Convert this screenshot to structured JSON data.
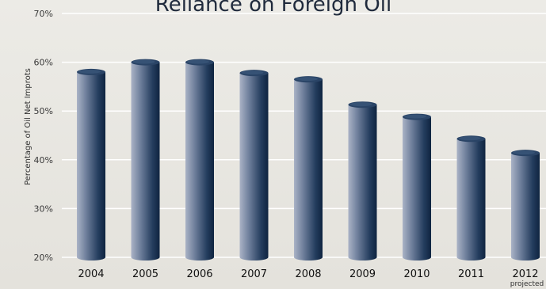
{
  "chart_data": {
    "type": "bar",
    "title": "Reliance on Foreign Oil",
    "ylabel": "Percentage of Oil Net Improts",
    "xlabel": "",
    "categories": [
      "2004",
      "2005",
      "2006",
      "2007",
      "2008",
      "2009",
      "2010",
      "2011",
      "2012"
    ],
    "category_notes": [
      "",
      "",
      "",
      "",
      "",
      "",
      "",
      "",
      "projected"
    ],
    "values": [
      58,
      60,
      60,
      57.8,
      56.5,
      51.3,
      48.8,
      44.3,
      41.4
    ],
    "ylim": [
      20,
      70
    ],
    "yticks": [
      20,
      30,
      40,
      50,
      60,
      70
    ],
    "ytick_labels": [
      "20%",
      "30%",
      "40%",
      "50%",
      "60%",
      "70%"
    ],
    "grid": true,
    "bar_style": "cylinder",
    "bar_color": "#1c3654"
  }
}
